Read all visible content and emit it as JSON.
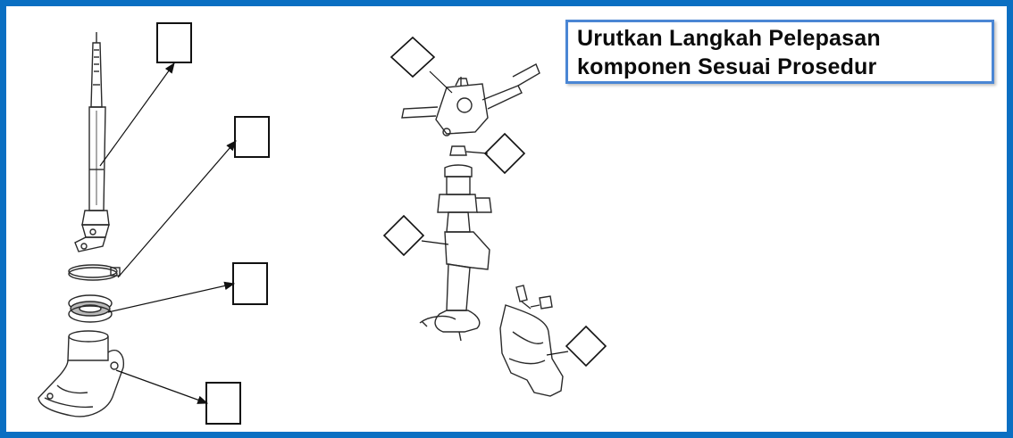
{
  "title": {
    "line1": "Urutkan Langkah Pelepasan",
    "line2": "komponen Sesuai Prosedur"
  },
  "colors": {
    "frame_border": "#0a6fc2",
    "title_border": "#4a86d4",
    "line_art": "#2a2a2a"
  },
  "answer_boxes": [
    "",
    "",
    "",
    ""
  ],
  "diamond_labels": [
    "",
    "",
    "",
    "",
    ""
  ],
  "components": {
    "left_exploded_view": [
      "steering-main-shaft",
      "hose-clamp",
      "column-hole-seal",
      "column-hole-cover"
    ],
    "right_exploded_view": [
      "combination-switch",
      "nut",
      "steering-column-assembly",
      "column-bracket-cover"
    ]
  }
}
